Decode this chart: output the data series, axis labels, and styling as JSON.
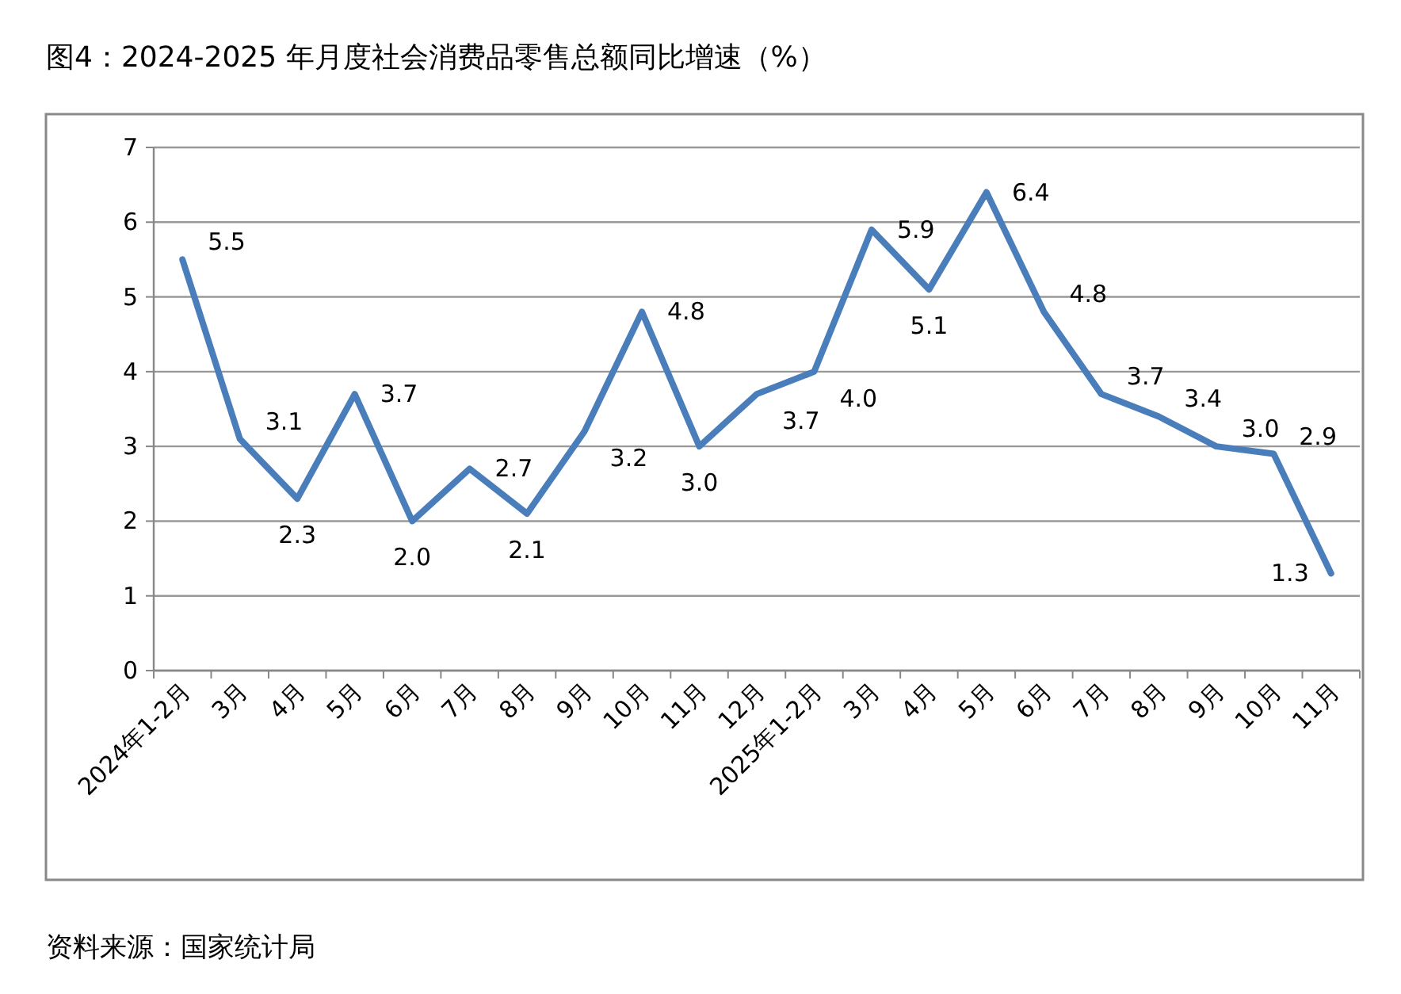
{
  "chart_data": {
    "type": "line",
    "title": "图4：2024-2025 年月度社会消费品零售总额同比增速（%）",
    "categories": [
      "2024年1-2月",
      "3月",
      "4月",
      "5月",
      "6月",
      "7月",
      "8月",
      "9月",
      "10月",
      "11月",
      "12月",
      "2025年1-2月",
      "3月",
      "4月",
      "5月",
      "6月",
      "7月",
      "8月",
      "9月",
      "10月",
      "11月"
    ],
    "series": [
      {
        "color": "#4a7ebb",
        "values": [
          5.5,
          3.1,
          2.3,
          3.7,
          2.0,
          2.7,
          2.1,
          3.2,
          4.8,
          3.0,
          3.7,
          4.0,
          5.9,
          5.1,
          6.4,
          4.8,
          3.7,
          3.4,
          3.0,
          2.9,
          1.3
        ]
      }
    ],
    "ylim": [
      0,
      7
    ],
    "yticks": [
      0,
      1,
      2,
      3,
      4,
      5,
      6,
      7
    ],
    "value_labels": [
      "5.5",
      "3.1",
      "2.3",
      "3.7",
      "2.0",
      "2.7",
      "2.1",
      "3.2",
      "4.8",
      "3.0",
      "3.7",
      "4.0",
      "5.9",
      "5.1",
      "6.4",
      "4.8",
      "3.7",
      "3.4",
      "3.0",
      "2.9",
      "1.3"
    ],
    "grid": "y",
    "marker": "none",
    "line_style": "solid",
    "annotations": [
      "资料来源：国家统计局"
    ]
  }
}
